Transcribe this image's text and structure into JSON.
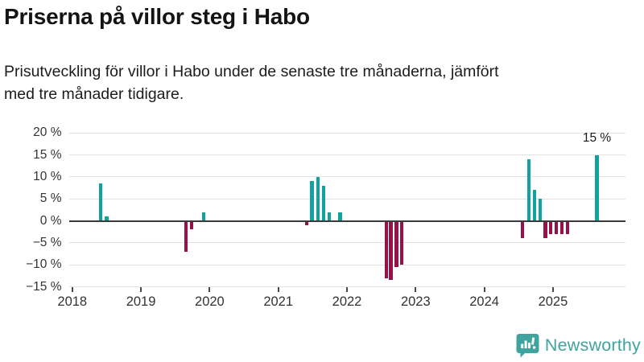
{
  "header": {
    "title": "Priserna på villor steg i Habo",
    "subtitle": "Prisutveckling för villor i Habo under de senaste tre månaderna, jämfört\nmed tre månader tidigare."
  },
  "chart_data": {
    "type": "bar",
    "title": "Priserna på villor steg i Habo",
    "subtitle": "Prisutveckling för villor i Habo under de senaste tre månaderna, jämfört med tre månader tidigare.",
    "xlabel": "",
    "ylabel": "",
    "grid": "horizontal",
    "xlim": [
      2017.95,
      2026.05
    ],
    "ylim": [
      -15,
      20
    ],
    "y_ticks": [
      {
        "label": "20 %",
        "value": 20
      },
      {
        "label": "15 %",
        "value": 15
      },
      {
        "label": "10 %",
        "value": 10
      },
      {
        "label": "5 %",
        "value": 5
      },
      {
        "label": "0 %",
        "value": 0
      },
      {
        "label": "−5 %",
        "value": -5
      },
      {
        "label": "−10 %",
        "value": -10
      },
      {
        "label": "−15 %",
        "value": -15
      }
    ],
    "x_ticks": [
      {
        "label": "2018",
        "value": 2018
      },
      {
        "label": "2019",
        "value": 2019
      },
      {
        "label": "2020",
        "value": 2020
      },
      {
        "label": "2021",
        "value": 2021
      },
      {
        "label": "2022",
        "value": 2022
      },
      {
        "label": "2023",
        "value": 2023
      },
      {
        "label": "2024",
        "value": 2024
      },
      {
        "label": "2025",
        "value": 2025
      }
    ],
    "bars": [
      {
        "x": 2018.41,
        "value": 8.5
      },
      {
        "x": 2018.5,
        "value": 1
      },
      {
        "x": 2019.66,
        "value": -7
      },
      {
        "x": 2019.74,
        "value": -2
      },
      {
        "x": 2019.91,
        "value": 2
      },
      {
        "x": 2021.41,
        "value": -1
      },
      {
        "x": 2021.49,
        "value": 9
      },
      {
        "x": 2021.58,
        "value": 10
      },
      {
        "x": 2021.66,
        "value": 8
      },
      {
        "x": 2021.74,
        "value": 2
      },
      {
        "x": 2021.9,
        "value": 2
      },
      {
        "x": 2022.57,
        "value": -13
      },
      {
        "x": 2022.64,
        "value": -13.4
      },
      {
        "x": 2022.72,
        "value": -10.5
      },
      {
        "x": 2022.8,
        "value": -10
      },
      {
        "x": 2024.56,
        "value": -4
      },
      {
        "x": 2024.65,
        "value": 14
      },
      {
        "x": 2024.73,
        "value": 7
      },
      {
        "x": 2024.81,
        "value": 5
      },
      {
        "x": 2024.89,
        "value": -4
      },
      {
        "x": 2024.97,
        "value": -3
      },
      {
        "x": 2025.05,
        "value": -3
      },
      {
        "x": 2025.13,
        "value": -3
      },
      {
        "x": 2025.21,
        "value": -3
      },
      {
        "x": 2025.64,
        "value": 15
      }
    ],
    "annotation": {
      "text": "15 %",
      "x": 2025.64,
      "above_value": 15
    },
    "positive_color": "#0fa29e",
    "negative_color": "#97104a",
    "grid_color": "#e2e2e2",
    "zero_line_color": "#3a3a3a",
    "tick_color": "#4a4a4a",
    "label_color": "#333333"
  },
  "footer": {
    "brand": "Newsworthy",
    "logo_icon": "chart-speech-bubble-icon",
    "brand_color": "#3fa39e"
  }
}
